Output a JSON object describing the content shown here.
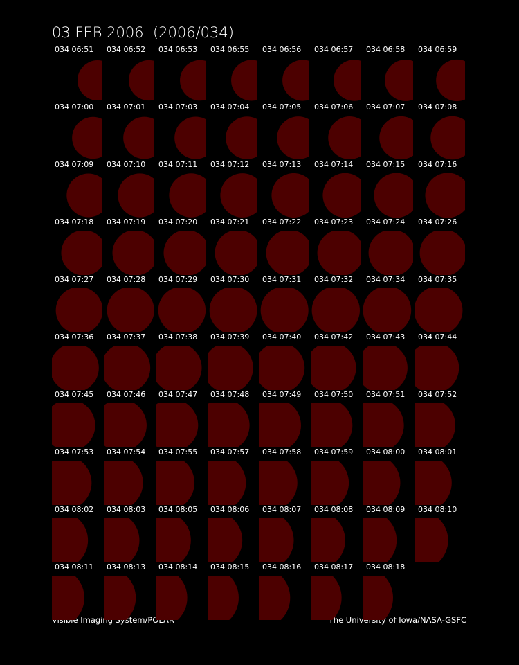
{
  "title": "03 FEB 2006  (2006/034)",
  "frames": [
    {
      "label": "034 06:51"
    },
    {
      "label": "034 06:52"
    },
    {
      "label": "034 06:53"
    },
    {
      "label": "034 06:55"
    },
    {
      "label": "034 06:56"
    },
    {
      "label": "034 06:57"
    },
    {
      "label": "034 06:58"
    },
    {
      "label": "034 06:59"
    },
    {
      "label": "034 07:00"
    },
    {
      "label": "034 07:01"
    },
    {
      "label": "034 07:03"
    },
    {
      "label": "034 07:04"
    },
    {
      "label": "034 07:05"
    },
    {
      "label": "034 07:06"
    },
    {
      "label": "034 07:07"
    },
    {
      "label": "034 07:08"
    },
    {
      "label": "034 07:09"
    },
    {
      "label": "034 07:10"
    },
    {
      "label": "034 07:11"
    },
    {
      "label": "034 07:12"
    },
    {
      "label": "034 07:13"
    },
    {
      "label": "034 07:14"
    },
    {
      "label": "034 07:15"
    },
    {
      "label": "034 07:16"
    },
    {
      "label": "034 07:18"
    },
    {
      "label": "034 07:19"
    },
    {
      "label": "034 07:20"
    },
    {
      "label": "034 07:21"
    },
    {
      "label": "034 07:22"
    },
    {
      "label": "034 07:23"
    },
    {
      "label": "034 07:24"
    },
    {
      "label": "034 07:26"
    },
    {
      "label": "034 07:27"
    },
    {
      "label": "034 07:28"
    },
    {
      "label": "034 07:29"
    },
    {
      "label": "034 07:30"
    },
    {
      "label": "034 07:31"
    },
    {
      "label": "034 07:32"
    },
    {
      "label": "034 07:34"
    },
    {
      "label": "034 07:35"
    },
    {
      "label": "034 07:36"
    },
    {
      "label": "034 07:37"
    },
    {
      "label": "034 07:38"
    },
    {
      "label": "034 07:39"
    },
    {
      "label": "034 07:40"
    },
    {
      "label": "034 07:42"
    },
    {
      "label": "034 07:43"
    },
    {
      "label": "034 07:44"
    },
    {
      "label": "034 07:45"
    },
    {
      "label": "034 07:46"
    },
    {
      "label": "034 07:47"
    },
    {
      "label": "034 07:48"
    },
    {
      "label": "034 07:49"
    },
    {
      "label": "034 07:50"
    },
    {
      "label": "034 07:51"
    },
    {
      "label": "034 07:52"
    },
    {
      "label": "034 07:53"
    },
    {
      "label": "034 07:54"
    },
    {
      "label": "034 07:55"
    },
    {
      "label": "034 07:57"
    },
    {
      "label": "034 07:58"
    },
    {
      "label": "034 07:59"
    },
    {
      "label": "034 08:00"
    },
    {
      "label": "034 08:01"
    },
    {
      "label": "034 08:02"
    },
    {
      "label": "034 08:03"
    },
    {
      "label": "034 08:05"
    },
    {
      "label": "034 08:06"
    },
    {
      "label": "034 08:07"
    },
    {
      "label": "034 08:08"
    },
    {
      "label": "034 08:09"
    },
    {
      "label": "034 08:10"
    },
    {
      "label": "034 08:11"
    },
    {
      "label": "034 08:13"
    },
    {
      "label": "034 08:14"
    },
    {
      "label": "034 08:15"
    },
    {
      "label": "034 08:16"
    },
    {
      "label": "034 08:17"
    },
    {
      "label": "034 08:18"
    }
  ],
  "footer": {
    "left": "Visible Imaging System/POLAR",
    "right": "The University of Iowa/NASA-GSFC"
  }
}
